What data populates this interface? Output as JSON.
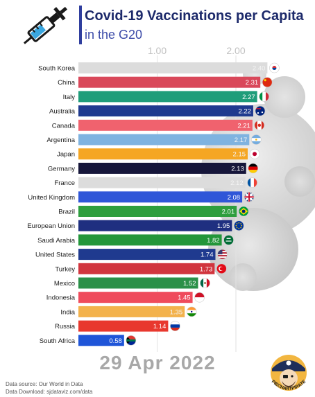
{
  "header": {
    "title": "Covid-19 Vaccinations per Capita",
    "subtitle": "in the G20"
  },
  "chart_data": {
    "type": "bar",
    "orientation": "horizontal",
    "xlim": [
      0,
      2.45
    ],
    "xticks": [
      "1.00",
      "2.00"
    ],
    "xtick_values": [
      1,
      2
    ],
    "grid": true,
    "categories": [
      "South Korea",
      "China",
      "Italy",
      "Australia",
      "Canada",
      "Argentina",
      "Japan",
      "Germany",
      "France",
      "United Kingdom",
      "Brazil",
      "European Union",
      "Saudi Arabia",
      "United States",
      "Turkey",
      "Mexico",
      "Indonesia",
      "India",
      "Russia",
      "South Africa"
    ],
    "values": [
      2.4,
      2.31,
      2.27,
      2.22,
      2.21,
      2.17,
      2.15,
      2.13,
      2.12,
      2.08,
      2.01,
      1.95,
      1.82,
      1.74,
      1.73,
      1.52,
      1.45,
      1.35,
      1.14,
      0.58
    ],
    "value_labels": [
      "2.40",
      "2.31",
      "2.27",
      "2.22",
      "2.21",
      "2.17",
      "2.15",
      "2.13",
      "2.12",
      "2.08",
      "2.01",
      "1.95",
      "1.82",
      "1.74",
      "1.73",
      "1.52",
      "1.45",
      "1.35",
      "1.14",
      "0.58"
    ],
    "colors": [
      "#dcdcdc",
      "#d9485a",
      "#1f9d7a",
      "#1f3a8f",
      "#f0626e",
      "#7fb3e0",
      "#f5a623",
      "#16163a",
      "#dcdcdc",
      "#2f56d8",
      "#2e9e3e",
      "#1f2f80",
      "#23963a",
      "#1f3a8f",
      "#d1353e",
      "#2a9048",
      "#ef4b5c",
      "#f3b24c",
      "#e8382e",
      "#1f55d8"
    ],
    "flag_icons": [
      "flag-south-korea-icon",
      "flag-china-icon",
      "flag-italy-icon",
      "flag-australia-icon",
      "flag-canada-icon",
      "flag-argentina-icon",
      "flag-japan-icon",
      "flag-germany-icon",
      "flag-france-icon",
      "flag-united-kingdom-icon",
      "flag-brazil-icon",
      "flag-european-union-icon",
      "flag-saudi-arabia-icon",
      "flag-united-states-icon",
      "flag-turkey-icon",
      "flag-mexico-icon",
      "flag-indonesia-icon",
      "flag-india-icon",
      "flag-russia-icon",
      "flag-south-africa-icon"
    ]
  },
  "date_label": "29 Apr 2022",
  "footer": {
    "source_line": "Data source: Our World in Data",
    "download_line": "Data Download: sjdataviz.com/data"
  },
  "logo": {
    "text": "PIECHARTPIRATE",
    "icon": "pirate-logo-icon"
  },
  "icons": {
    "syringe": "syringe-icon",
    "background": "virus-background-icon"
  }
}
